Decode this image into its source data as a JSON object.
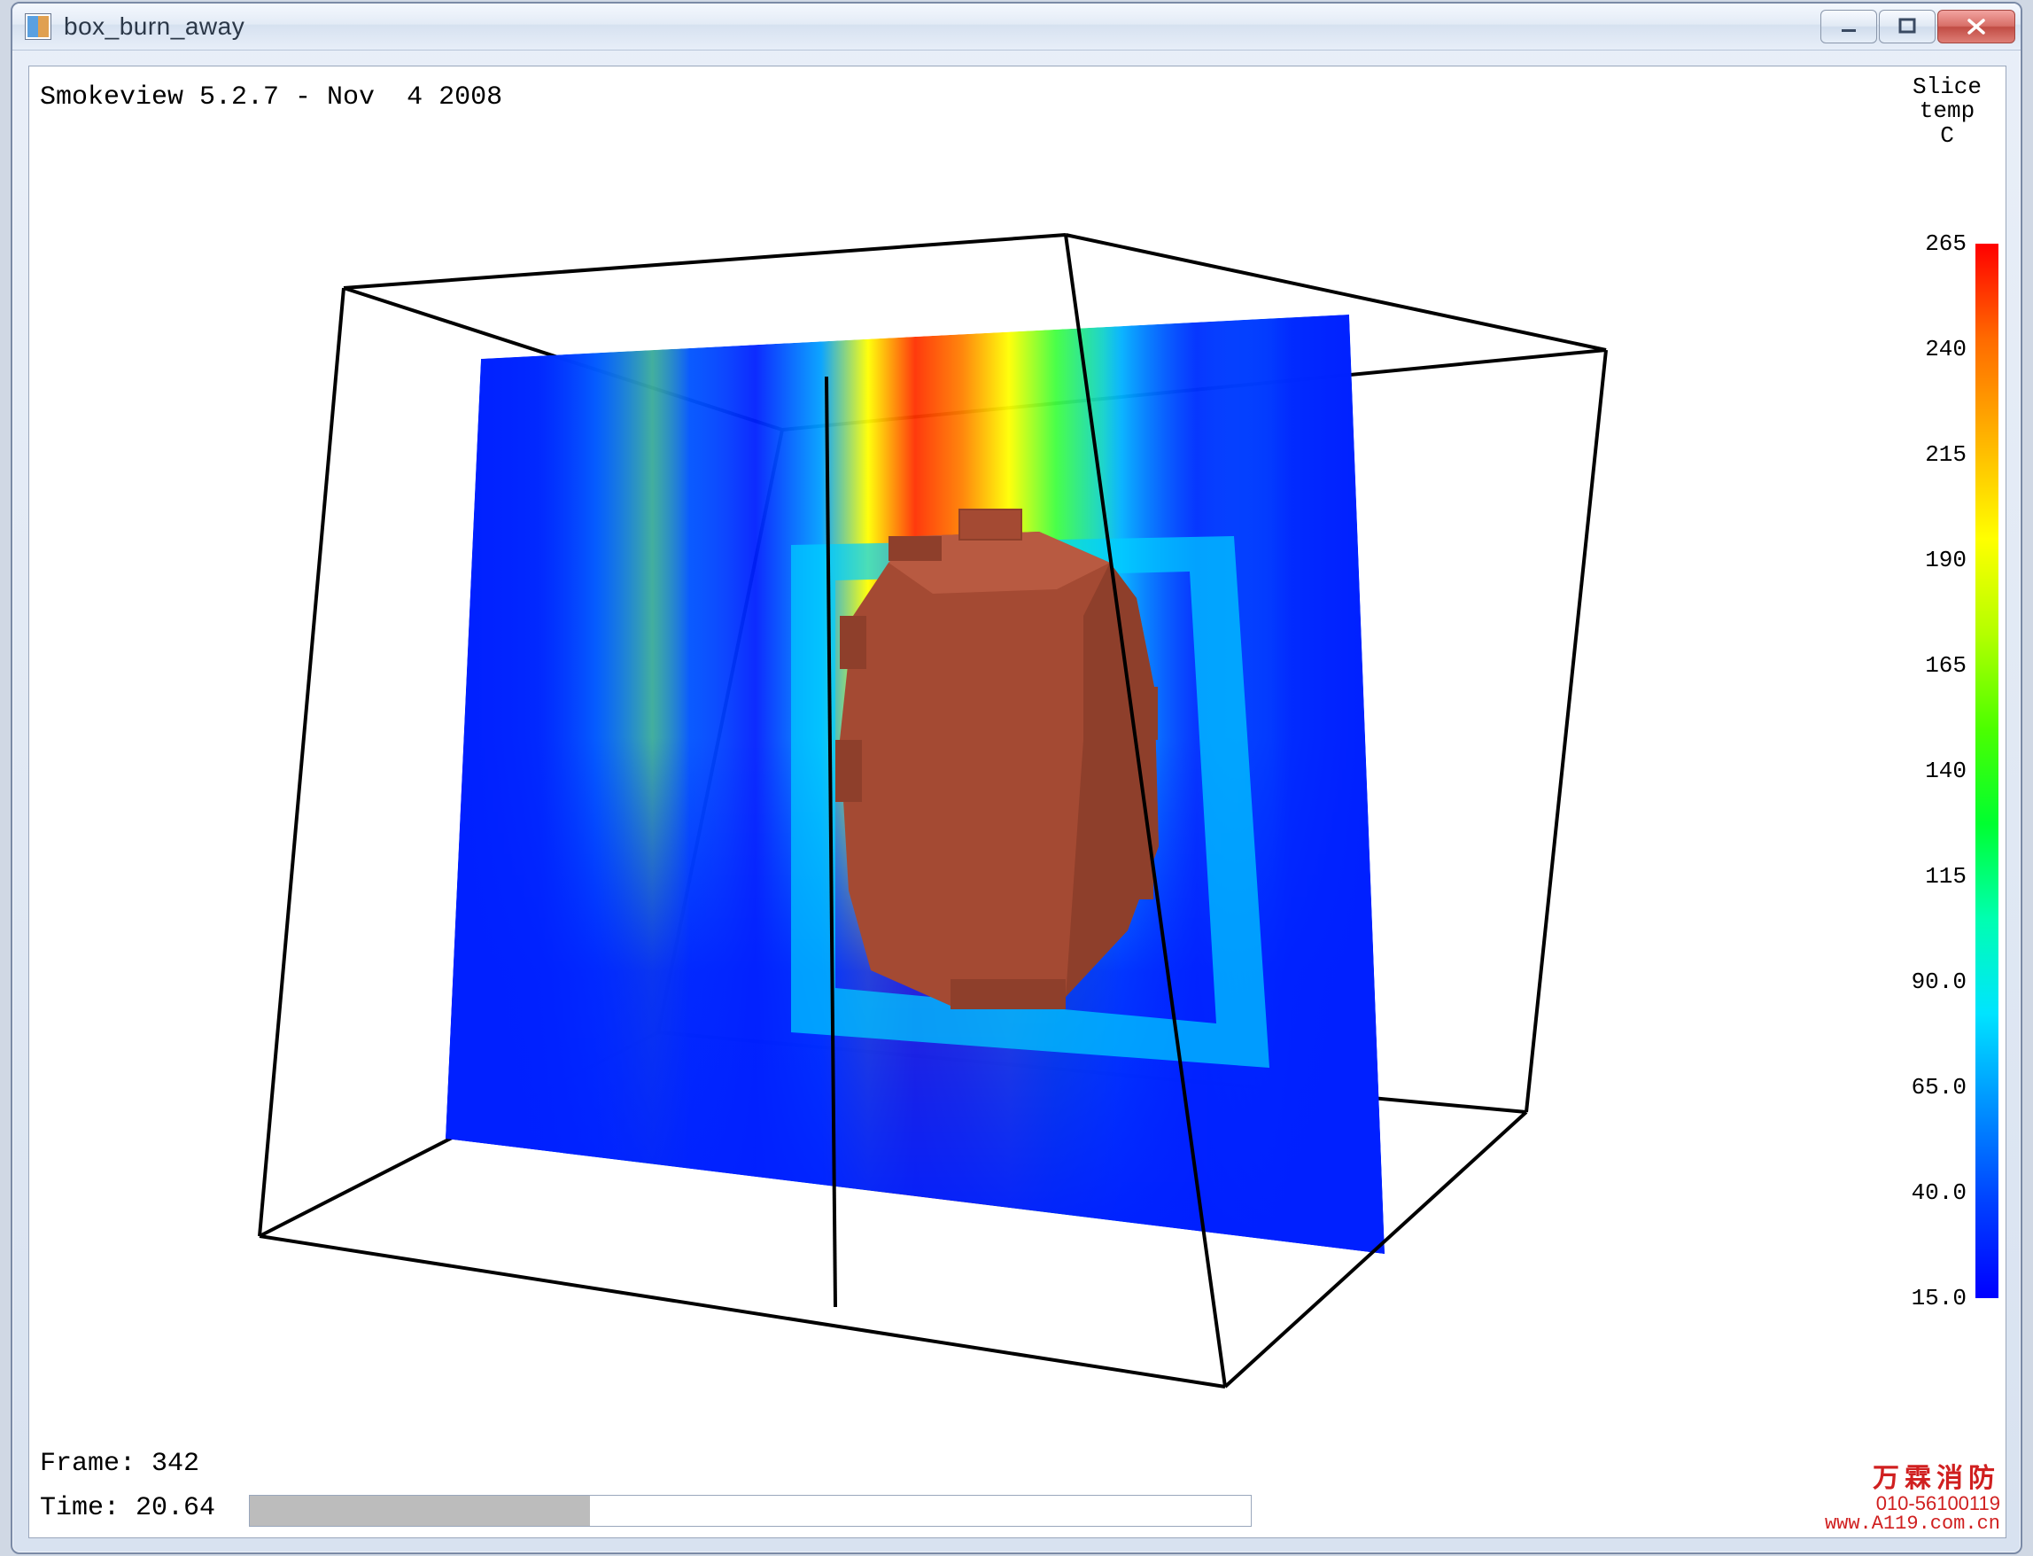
{
  "window": {
    "title": "box_burn_away"
  },
  "viewport": {
    "background_color": "#ffffff",
    "version_text": "Smokeview 5.2.7 - Nov  4 2008",
    "frame_label": "Frame:",
    "frame_value": "342",
    "time_label": "Time:",
    "time_value": "20.64",
    "timebar": {
      "progress_pct": 34
    }
  },
  "legend": {
    "title_lines": [
      "Slice",
      "temp",
      "C"
    ],
    "min": 15.0,
    "max": 265,
    "ticks": [
      "265",
      "240",
      "215",
      "190",
      "165",
      "140",
      "115",
      "90.0",
      "65.0",
      "40.0",
      "15.0"
    ],
    "gradient_stops": [
      {
        "pct": 0,
        "color": "#ff0000"
      },
      {
        "pct": 9,
        "color": "#ff6a00"
      },
      {
        "pct": 18,
        "color": "#ffb000"
      },
      {
        "pct": 28,
        "color": "#ffff00"
      },
      {
        "pct": 37,
        "color": "#b4ff00"
      },
      {
        "pct": 46,
        "color": "#4cff00"
      },
      {
        "pct": 55,
        "color": "#00ff30"
      },
      {
        "pct": 64,
        "color": "#00ffb0"
      },
      {
        "pct": 73,
        "color": "#00e4ff"
      },
      {
        "pct": 82,
        "color": "#0090ff"
      },
      {
        "pct": 91,
        "color": "#0040ff"
      },
      {
        "pct": 100,
        "color": "#0000ff"
      }
    ]
  },
  "scene": {
    "wireframe_color": "#000000",
    "wireframe_width": 4,
    "burn_object_color": "#a44a33",
    "burn_object_shade": "#8e3f2b",
    "slice_colors": {
      "cold": "#0020ff",
      "cool": "#0090ff",
      "cyan": "#00e0ff",
      "green": "#40ff40",
      "yellow": "#ffff00",
      "orange": "#ff8000",
      "hot": "#ff1000"
    },
    "box_vertices_2d": {
      "ftl": [
        315,
        190
      ],
      "ftr": [
        1130,
        130
      ],
      "btl": [
        810,
        350
      ],
      "btr": [
        1740,
        260
      ],
      "fbl": [
        220,
        1260
      ],
      "fbr": [
        1310,
        1430
      ],
      "bbl": [
        670,
        1030
      ],
      "bbr": [
        1650,
        1120
      ]
    },
    "slice_plane_2d": {
      "tl": [
        470,
        270
      ],
      "tr": [
        1450,
        220
      ],
      "bl": [
        430,
        1150
      ],
      "br": [
        1490,
        1280
      ]
    },
    "cutout_rect_2d": {
      "tl": [
        870,
        520
      ],
      "tr": [
        1270,
        510
      ],
      "bl": [
        870,
        980
      ],
      "br": [
        1300,
        1020
      ]
    }
  },
  "watermark": {
    "line1": "万霖消防",
    "line2": "010-56100119",
    "line3": "www.A119.com.cn"
  }
}
